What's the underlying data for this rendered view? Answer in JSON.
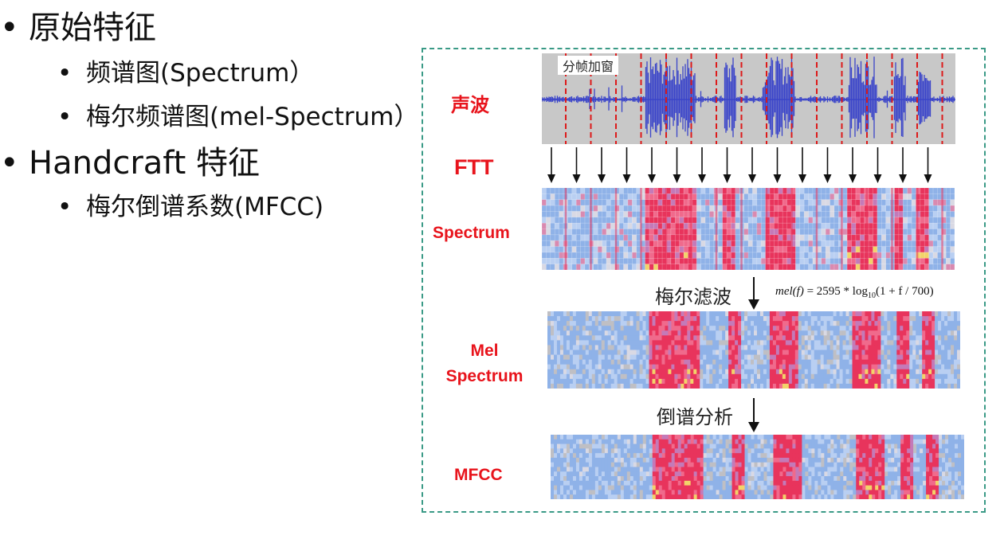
{
  "bullets": {
    "raw_features": "原始特征",
    "spectrum": "频谱图(Spectrum）",
    "mel_spectrum": "梅尔频谱图(mel-Spectrum）",
    "handcraft": "Handcraft 特征",
    "mfcc": "梅尔倒谱系数(MFCC)",
    "bullet_char": "•"
  },
  "diagram": {
    "labels": {
      "waveform": "声波",
      "ftt": "FTT",
      "spectrum": "Spectrum",
      "mel_line1": "Mel",
      "mel_line2": "Spectrum",
      "mfcc": "MFCC"
    },
    "framing_label": "分帧加窗",
    "mel_filter_label": "梅尔滤波",
    "cepstrum_label": "倒谱分析",
    "formula": {
      "lhs": "mel(f)",
      "rhs_prefix": " = 2595 * log",
      "subscript": "10",
      "rhs_suffix": "(1 + f / 700)"
    },
    "colors": {
      "frame_border": "#3a9a86",
      "label_red": "#e8141c",
      "wave_blue": "#3b45c9",
      "wave_bg": "#c8c8c8",
      "frame_line_red": "#dd1a1a",
      "spec_red": "#e8345c",
      "spec_blue": "#8fb2e8"
    }
  }
}
